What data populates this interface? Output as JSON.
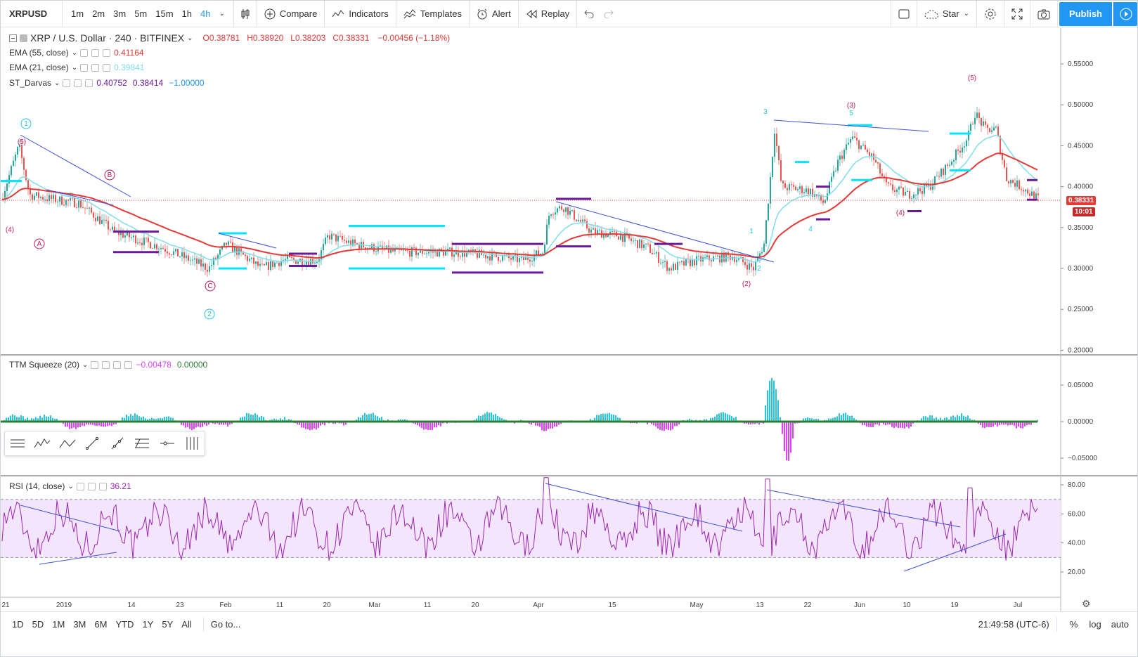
{
  "toolbar": {
    "symbol": "XRPUSD",
    "intervals": [
      "1m",
      "2m",
      "3m",
      "5m",
      "15m",
      "1h",
      "4h"
    ],
    "active_interval": "4h",
    "compare": "Compare",
    "indicators": "Indicators",
    "templates": "Templates",
    "alert": "Alert",
    "replay": "Replay",
    "star": "Star",
    "publish": "Publish"
  },
  "main_legend": {
    "title": "XRP / U.S. Dollar · 240 · BITFINEX",
    "open": "O0.38781",
    "high": "H0.38920",
    "low": "L0.38203",
    "close": "C0.38331",
    "change": "−0.00456 (−1.18%)"
  },
  "indicators": {
    "ema55": {
      "label": "EMA (55, close)",
      "value": "0.41164"
    },
    "ema21": {
      "label": "EMA (21, close)",
      "value": "0.39841"
    },
    "darvas": {
      "label": "ST_Darvas",
      "v1": "0.40752",
      "v2": "0.38414",
      "v3": "−1.00000"
    },
    "squeeze": {
      "label": "TTM Squeeze (20)",
      "v1": "−0.00478",
      "v2": "0.00000"
    },
    "rsi": {
      "label": "RSI (14, close)",
      "value": "36.21"
    }
  },
  "price_tag": {
    "price": "0.38331",
    "countdown": "10:01"
  },
  "price_axis": [
    "0.55000",
    "0.50000",
    "0.45000",
    "0.40000",
    "0.35000",
    "0.30000",
    "0.25000",
    "0.20000"
  ],
  "squeeze_axis": [
    "0.05000",
    "0.00000",
    "−0.05000"
  ],
  "rsi_axis": [
    "80.00",
    "60.00",
    "40.00",
    "20.00"
  ],
  "time_axis": [
    "21",
    "2019",
    "14",
    "23",
    "Feb",
    "11",
    "20",
    "Mar",
    "11",
    "20",
    "Apr",
    "15",
    "May",
    "13",
    "22",
    "Jun",
    "10",
    "19",
    "Jul"
  ],
  "waves": [
    "1",
    "(5)",
    "A",
    "B",
    "C",
    "2",
    "(2)",
    "1",
    "2",
    "3",
    "4",
    "5",
    "(3)",
    "(4)",
    "(5)",
    "(4)"
  ],
  "bottom": {
    "ranges": [
      "1D",
      "5D",
      "1M",
      "3M",
      "6M",
      "YTD",
      "1Y",
      "5Y",
      "All"
    ],
    "goto": "Go to...",
    "clock": "21:49:58 (UTC-6)",
    "pct": "%",
    "log": "log",
    "auto": "auto"
  },
  "colors": {
    "up": "#26a69a",
    "down": "#ef5350",
    "ema55": "#e53935",
    "ema21": "#80deea",
    "darvas_top": "#00e5ff",
    "darvas_bot": "#6a1b9a",
    "trend": "#3f51e0",
    "rsi": "#9c27b0",
    "rsi_band": "#f3e5fb",
    "squeeze_pos": "#26c6da",
    "squeeze_neg": "#e040fb",
    "accent": "#2196f3"
  }
}
